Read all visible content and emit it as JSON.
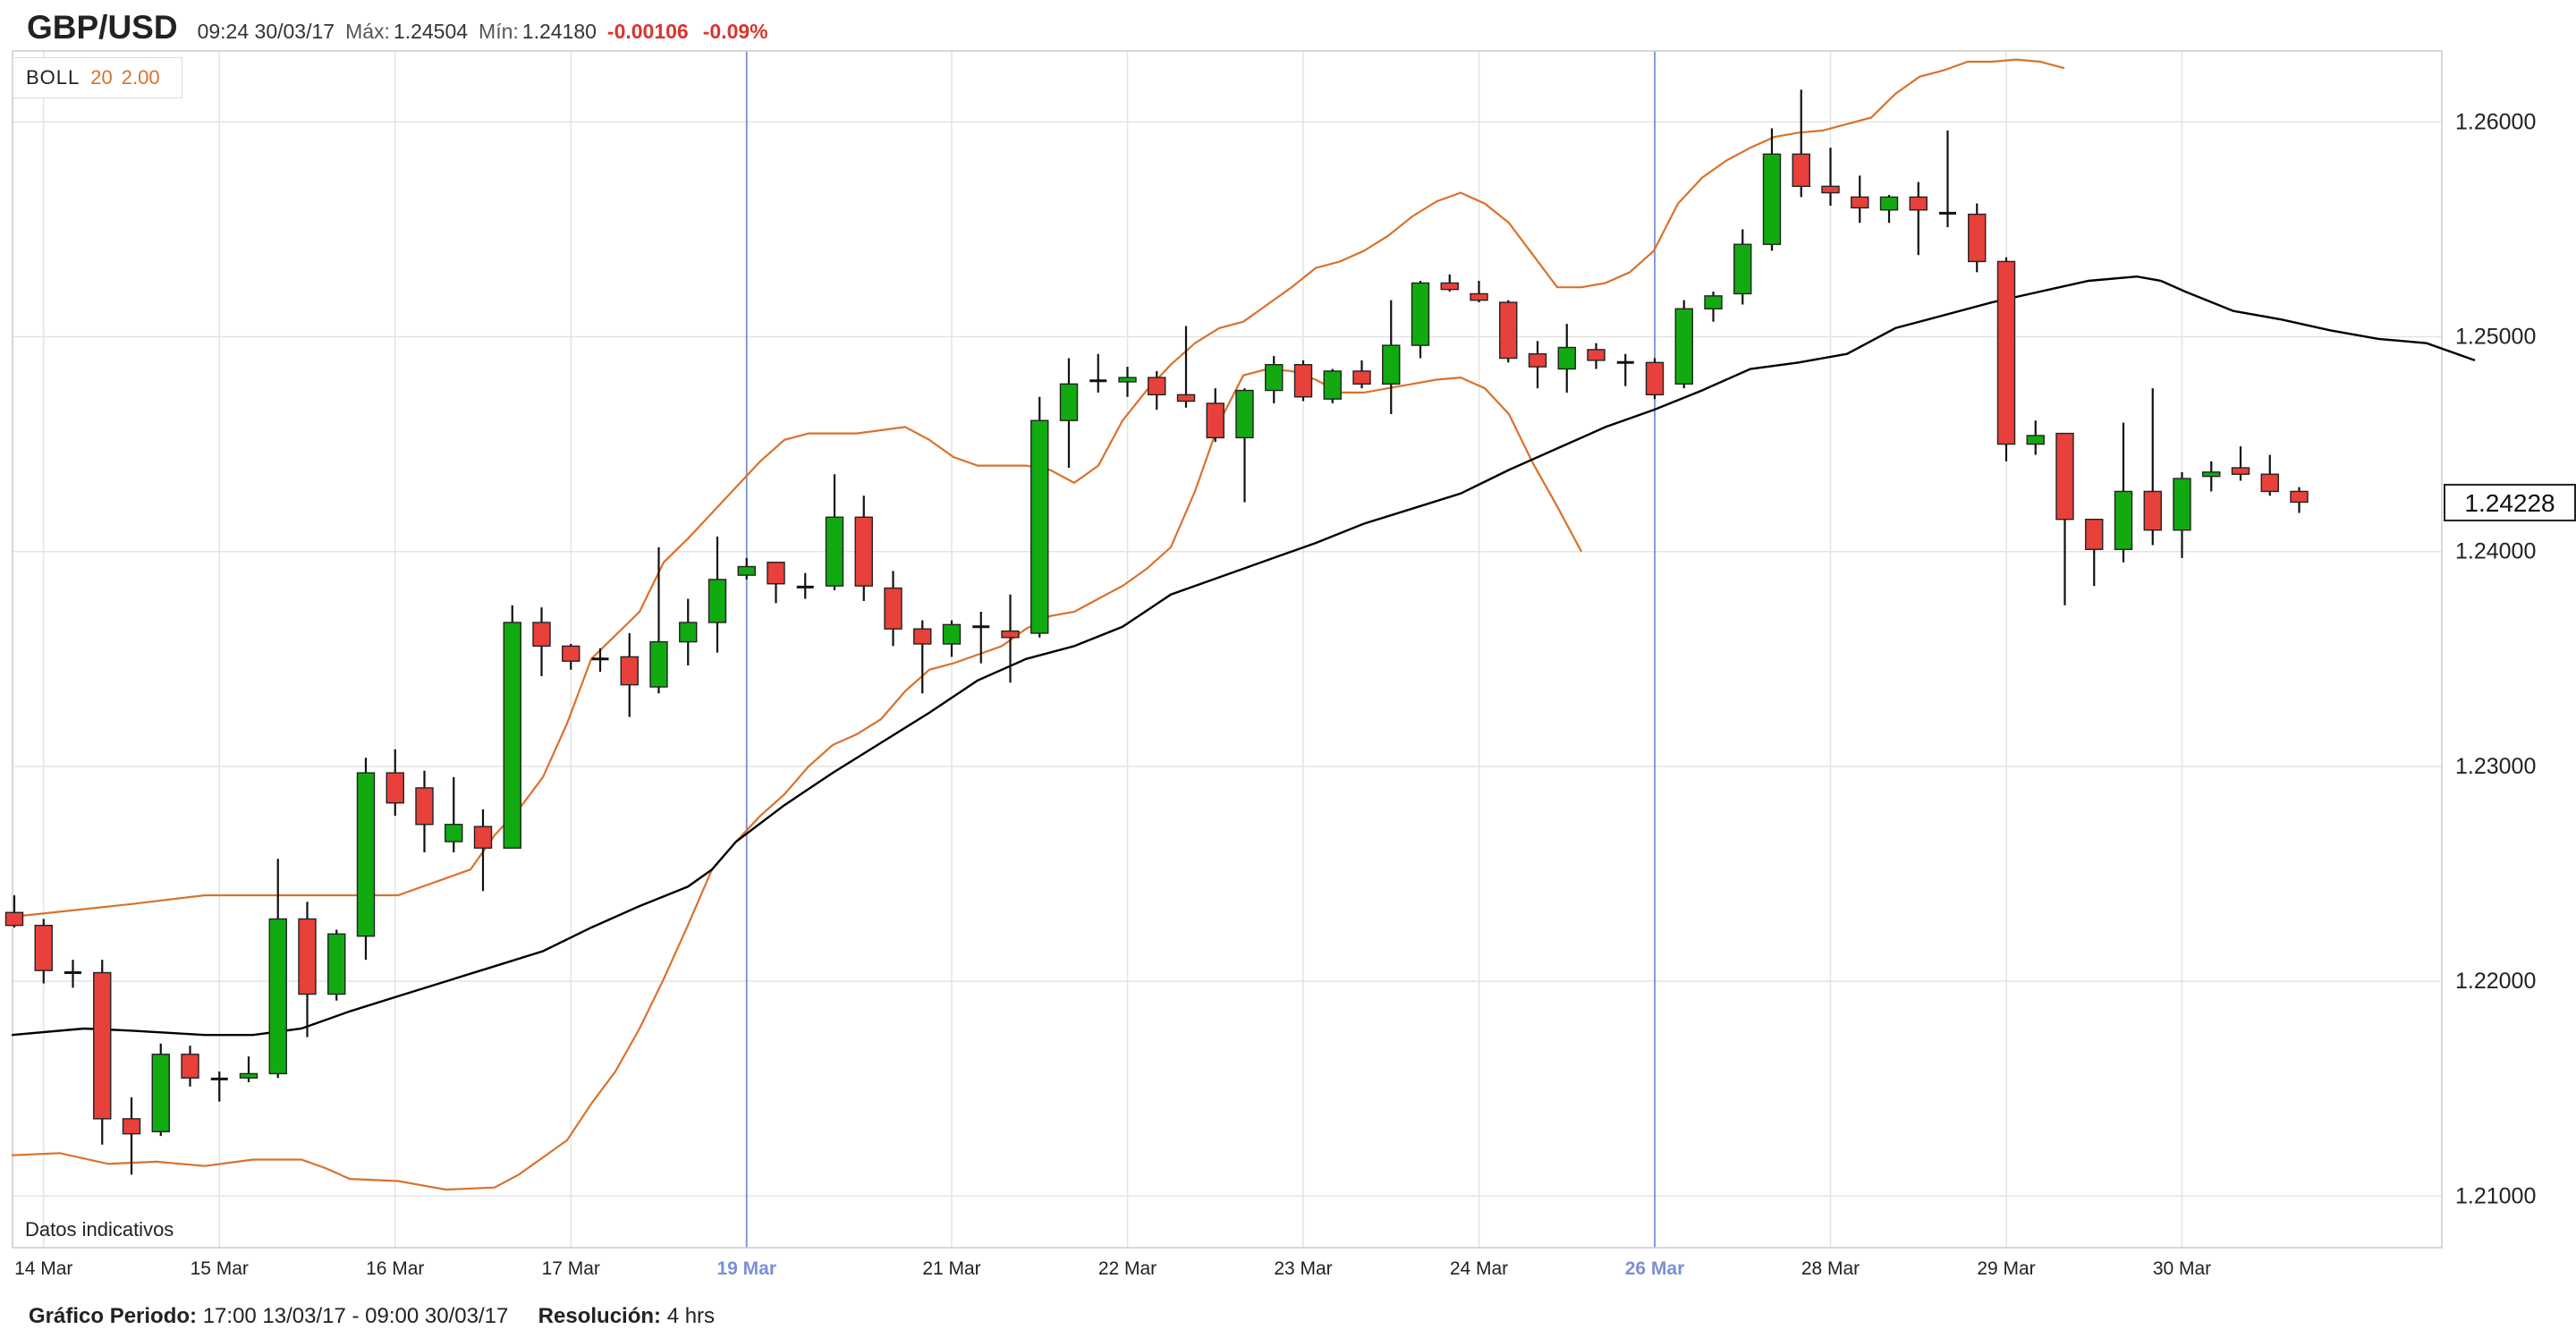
{
  "header": {
    "symbol": "GBP/USD",
    "datetime": "09:24 30/03/17",
    "max_label": "Máx:",
    "max_value": "1.24504",
    "min_label": "Mín:",
    "min_value": "1.24180",
    "change": "-0.00106",
    "change_pct": "-0.09%"
  },
  "indicator": {
    "name": "BOLL",
    "period": "20",
    "stddev": "2.00"
  },
  "disclaimer": "Datos indicativos",
  "footer": {
    "period_label": "Gráfico Periodo:",
    "period_value": "17:00 13/03/17 - 09:00 30/03/17",
    "resolution_label": "Resolución:",
    "resolution_value": "4 hrs"
  },
  "colors": {
    "up": "#11aa11",
    "down": "#e8403a",
    "boll_band": "#d9722b",
    "boll_mid": "#000000",
    "highlight": "#7b8fd4",
    "grid": "#e4e4e4"
  },
  "chart_data": {
    "type": "candlestick",
    "ylim": [
      1.2076,
      1.2633
    ],
    "y_ticks": [
      "1.26000",
      "1.25000",
      "1.24000",
      "1.23000",
      "1.22000",
      "1.21000"
    ],
    "x_ticks": [
      {
        "label": "14 Mar",
        "index": 1,
        "highlight": false
      },
      {
        "label": "15 Mar",
        "index": 7,
        "highlight": false
      },
      {
        "label": "16 Mar",
        "index": 13,
        "highlight": false
      },
      {
        "label": "17 Mar",
        "index": 19,
        "highlight": false
      },
      {
        "label": "19 Mar",
        "index": 25,
        "highlight": true
      },
      {
        "label": "21 Mar",
        "index": 32,
        "highlight": false
      },
      {
        "label": "22 Mar",
        "index": 38,
        "highlight": false
      },
      {
        "label": "23 Mar",
        "index": 44,
        "highlight": false
      },
      {
        "label": "24 Mar",
        "index": 50,
        "highlight": false
      },
      {
        "label": "26 Mar",
        "index": 56,
        "highlight": true
      },
      {
        "label": "28 Mar",
        "index": 62,
        "highlight": false
      },
      {
        "label": "29 Mar",
        "index": 68,
        "highlight": false
      },
      {
        "label": "30 Mar",
        "index": 74,
        "highlight": false
      }
    ],
    "last_price": "1.24228",
    "candles": [
      [
        1.2232,
        1.224,
        1.2225,
        1.2226
      ],
      [
        1.2226,
        1.2229,
        1.2199,
        1.2205
      ],
      [
        1.2204,
        1.221,
        1.2197,
        1.2204
      ],
      [
        1.2204,
        1.221,
        1.2124,
        1.2136
      ],
      [
        1.2136,
        1.2146,
        1.211,
        1.2129
      ],
      [
        1.213,
        1.2171,
        1.2128,
        1.2166
      ],
      [
        1.2166,
        1.217,
        1.2151,
        1.2155
      ],
      [
        1.2154,
        1.2158,
        1.2144,
        1.2155
      ],
      [
        1.2155,
        1.2165,
        1.2153,
        1.2157
      ],
      [
        1.2157,
        1.2257,
        1.2155,
        1.2229
      ],
      [
        1.2229,
        1.2237,
        1.2174,
        1.2194
      ],
      [
        1.2194,
        1.2224,
        1.2191,
        1.2222
      ],
      [
        1.2221,
        1.2304,
        1.221,
        1.2297
      ],
      [
        1.2297,
        1.2308,
        1.2277,
        1.2283
      ],
      [
        1.229,
        1.2298,
        1.226,
        1.2273
      ],
      [
        1.2265,
        1.2295,
        1.226,
        1.2273
      ],
      [
        1.2272,
        1.228,
        1.2242,
        1.2262
      ],
      [
        1.2262,
        1.2375,
        1.2262,
        1.2367
      ],
      [
        1.2367,
        1.2374,
        1.2342,
        1.2356
      ],
      [
        1.2356,
        1.2357,
        1.2345,
        1.2349
      ],
      [
        1.235,
        1.2355,
        1.2344,
        1.235
      ],
      [
        1.2351,
        1.2362,
        1.2323,
        1.2338
      ],
      [
        1.2337,
        1.2402,
        1.2334,
        1.2358
      ],
      [
        1.2358,
        1.2378,
        1.2347,
        1.2367
      ],
      [
        1.2367,
        1.2407,
        1.2353,
        1.2387
      ],
      [
        1.2389,
        1.2397,
        1.2387,
        1.2393
      ],
      [
        1.2395,
        1.2395,
        1.2376,
        1.2385
      ],
      [
        1.2384,
        1.239,
        1.2378,
        1.2383
      ],
      [
        1.2384,
        1.2436,
        1.2382,
        1.2416
      ],
      [
        1.2416,
        1.2426,
        1.2377,
        1.2384
      ],
      [
        1.2383,
        1.2391,
        1.2356,
        1.2364
      ],
      [
        1.2364,
        1.2368,
        1.2334,
        1.2357
      ],
      [
        1.2357,
        1.2368,
        1.2351,
        1.2366
      ],
      [
        1.2365,
        1.2372,
        1.2348,
        1.2365
      ],
      [
        1.2363,
        1.238,
        1.2339,
        1.236
      ],
      [
        1.2362,
        1.2472,
        1.236,
        1.2461
      ],
      [
        1.2461,
        1.249,
        1.2439,
        1.2478
      ],
      [
        1.2479,
        1.2492,
        1.2474,
        1.248
      ],
      [
        1.2479,
        1.2486,
        1.2472,
        1.2481
      ],
      [
        1.2481,
        1.2484,
        1.2466,
        1.2473
      ],
      [
        1.2473,
        1.2505,
        1.2467,
        1.247
      ],
      [
        1.2469,
        1.2476,
        1.2451,
        1.2453
      ],
      [
        1.2453,
        1.2476,
        1.2423,
        1.2475
      ],
      [
        1.2475,
        1.2491,
        1.2469,
        1.2487
      ],
      [
        1.2487,
        1.2489,
        1.247,
        1.2472
      ],
      [
        1.2471,
        1.2485,
        1.2469,
        1.2484
      ],
      [
        1.2484,
        1.2489,
        1.2476,
        1.2478
      ],
      [
        1.2478,
        1.2517,
        1.2464,
        1.2496
      ],
      [
        1.2496,
        1.2526,
        1.249,
        1.2525
      ],
      [
        1.2525,
        1.2529,
        1.2521,
        1.2522
      ],
      [
        1.252,
        1.2526,
        1.2516,
        1.2517
      ],
      [
        1.2516,
        1.2517,
        1.2488,
        1.249
      ],
      [
        1.2492,
        1.2498,
        1.2476,
        1.2486
      ],
      [
        1.2485,
        1.2506,
        1.2474,
        1.2495
      ],
      [
        1.2494,
        1.2497,
        1.2485,
        1.2489
      ],
      [
        1.2488,
        1.2492,
        1.2477,
        1.2488
      ],
      [
        1.2488,
        1.249,
        1.2471,
        1.2473
      ],
      [
        1.2478,
        1.2517,
        1.2476,
        1.2513
      ],
      [
        1.2513,
        1.2521,
        1.2507,
        1.2519
      ],
      [
        1.252,
        1.255,
        1.2515,
        1.2543
      ],
      [
        1.2543,
        1.2597,
        1.254,
        1.2585
      ],
      [
        1.2585,
        1.2615,
        1.2565,
        1.257
      ],
      [
        1.257,
        1.2588,
        1.2561,
        1.2567
      ],
      [
        1.2565,
        1.2575,
        1.2553,
        1.256
      ],
      [
        1.2559,
        1.2566,
        1.2553,
        1.2565
      ],
      [
        1.2565,
        1.2572,
        1.2538,
        1.2559
      ],
      [
        1.2558,
        1.2596,
        1.2551,
        1.2557
      ],
      [
        1.2557,
        1.2562,
        1.253,
        1.2535
      ],
      [
        1.2535,
        1.2537,
        1.2442,
        1.245
      ],
      [
        1.245,
        1.2461,
        1.2445,
        1.2454
      ],
      [
        1.2455,
        1.2455,
        1.2375,
        1.2415
      ],
      [
        1.2415,
        1.2415,
        1.2384,
        1.2401
      ],
      [
        1.2401,
        1.246,
        1.2395,
        1.2428
      ],
      [
        1.2428,
        1.2476,
        1.2403,
        1.241
      ],
      [
        1.241,
        1.2437,
        1.2397,
        1.2434
      ],
      [
        1.2435,
        1.2442,
        1.2428,
        1.2437
      ],
      [
        1.2439,
        1.2449,
        1.2433,
        1.2436
      ],
      [
        1.2436,
        1.2445,
        1.2426,
        1.2428
      ],
      [
        1.2428,
        1.243,
        1.2418,
        1.2423
      ]
    ],
    "bollinger": {
      "upper": [
        [
          0,
          1.223
        ],
        [
          5,
          1.2236
        ],
        [
          8,
          1.224
        ],
        [
          14,
          1.224
        ],
        [
          16,
          1.224
        ],
        [
          18,
          1.2248
        ],
        [
          19,
          1.2252
        ],
        [
          20,
          1.2268
        ],
        [
          21,
          1.228
        ],
        [
          22,
          1.2295
        ],
        [
          23,
          1.232
        ],
        [
          24,
          1.235
        ],
        [
          26,
          1.2372
        ],
        [
          27,
          1.2395
        ],
        [
          28,
          1.2406
        ],
        [
          29,
          1.2418
        ],
        [
          30,
          1.243
        ],
        [
          31,
          1.2442
        ],
        [
          32,
          1.2452
        ],
        [
          33,
          1.2455
        ],
        [
          35,
          1.2455
        ],
        [
          37,
          1.2458
        ],
        [
          38,
          1.2452
        ],
        [
          39,
          1.2444
        ],
        [
          40,
          1.244
        ],
        [
          41,
          1.244
        ],
        [
          42,
          1.244
        ],
        [
          43,
          1.2438
        ],
        [
          44,
          1.2432
        ],
        [
          45,
          1.244
        ],
        [
          46,
          1.2461
        ],
        [
          47,
          1.2475
        ],
        [
          48,
          1.2487
        ],
        [
          49,
          1.2497
        ],
        [
          50,
          1.2504
        ],
        [
          51,
          1.2507
        ],
        [
          52,
          1.2515
        ],
        [
          53,
          1.2523
        ],
        [
          54,
          1.2532
        ],
        [
          55,
          1.2535
        ],
        [
          56,
          1.254
        ],
        [
          57,
          1.2547
        ],
        [
          58,
          1.2556
        ],
        [
          59,
          1.2563
        ],
        [
          60,
          1.2567
        ],
        [
          61,
          1.2562
        ],
        [
          62,
          1.2553
        ],
        [
          63,
          1.2538
        ],
        [
          64,
          1.2523
        ],
        [
          65,
          1.2523
        ],
        [
          66,
          1.2525
        ],
        [
          67,
          1.253
        ],
        [
          68,
          1.254
        ],
        [
          69,
          1.2562
        ],
        [
          70,
          1.2574
        ],
        [
          71,
          1.2582
        ],
        [
          72,
          1.2588
        ],
        [
          73,
          1.2593
        ],
        [
          74,
          1.2595
        ],
        [
          75,
          1.2596
        ],
        [
          76,
          1.2599
        ],
        [
          77,
          1.2602
        ],
        [
          78,
          1.2613
        ],
        [
          79,
          1.2621
        ],
        [
          80,
          1.2624
        ],
        [
          81,
          1.2628
        ],
        [
          82,
          1.2628
        ],
        [
          83,
          1.2629
        ],
        [
          84,
          1.2628
        ],
        [
          85,
          1.2625
        ]
      ],
      "middle": [
        [
          0,
          1.2175
        ],
        [
          3,
          1.2178
        ],
        [
          5,
          1.2177
        ],
        [
          8,
          1.2175
        ],
        [
          10,
          1.2175
        ],
        [
          12,
          1.2178
        ],
        [
          14,
          1.2186
        ],
        [
          16,
          1.2193
        ],
        [
          18,
          1.22
        ],
        [
          20,
          1.2207
        ],
        [
          22,
          1.2214
        ],
        [
          24,
          1.2225
        ],
        [
          26,
          1.2235
        ],
        [
          28,
          1.2244
        ],
        [
          29,
          1.2252
        ],
        [
          30,
          1.2265
        ],
        [
          32,
          1.2282
        ],
        [
          34,
          1.2297
        ],
        [
          36,
          1.2311
        ],
        [
          38,
          1.2325
        ],
        [
          40,
          1.234
        ],
        [
          42,
          1.235
        ],
        [
          44,
          1.2356
        ],
        [
          46,
          1.2365
        ],
        [
          48,
          1.238
        ],
        [
          50,
          1.2388
        ],
        [
          52,
          1.2396
        ],
        [
          54,
          1.2404
        ],
        [
          56,
          1.2413
        ],
        [
          58,
          1.242
        ],
        [
          60,
          1.2427
        ],
        [
          62,
          1.2438
        ],
        [
          64,
          1.2448
        ],
        [
          66,
          1.2458
        ],
        [
          68,
          1.2466
        ],
        [
          70,
          1.2475
        ],
        [
          72,
          1.2485
        ],
        [
          74,
          1.2488
        ],
        [
          76,
          1.2492
        ],
        [
          78,
          1.2504
        ],
        [
          80,
          1.251
        ],
        [
          82,
          1.2516
        ],
        [
          84,
          1.2521
        ],
        [
          86,
          1.2526
        ],
        [
          88,
          1.2528
        ],
        [
          89,
          1.2526
        ],
        [
          90,
          1.2521
        ],
        [
          92,
          1.2512
        ],
        [
          94,
          1.2508
        ],
        [
          96,
          1.2503
        ],
        [
          98,
          1.2499
        ],
        [
          100,
          1.2497
        ],
        [
          102,
          1.2489
        ]
      ],
      "lower": [
        [
          0,
          1.2119
        ],
        [
          2,
          1.212
        ],
        [
          4,
          1.2115
        ],
        [
          6,
          1.2116
        ],
        [
          8,
          1.2114
        ],
        [
          10,
          1.2117
        ],
        [
          12,
          1.2117
        ],
        [
          13,
          1.2113
        ],
        [
          14,
          1.2108
        ],
        [
          16,
          1.2107
        ],
        [
          17,
          1.2105
        ],
        [
          18,
          1.2103
        ],
        [
          20,
          1.2104
        ],
        [
          21,
          1.211
        ],
        [
          22,
          1.2118
        ],
        [
          23,
          1.2126
        ],
        [
          24,
          1.2143
        ],
        [
          25,
          1.2158
        ],
        [
          26,
          1.2178
        ],
        [
          27,
          1.2201
        ],
        [
          28,
          1.2226
        ],
        [
          29,
          1.2252
        ],
        [
          30,
          1.2265
        ],
        [
          31,
          1.2277
        ],
        [
          32,
          1.2287
        ],
        [
          33,
          1.23
        ],
        [
          34,
          1.231
        ],
        [
          35,
          1.2315
        ],
        [
          36,
          1.2322
        ],
        [
          37,
          1.2335
        ],
        [
          38,
          1.2345
        ],
        [
          39,
          1.2348
        ],
        [
          40,
          1.2352
        ],
        [
          41,
          1.2356
        ],
        [
          42,
          1.2364
        ],
        [
          43,
          1.237
        ],
        [
          44,
          1.2372
        ],
        [
          45,
          1.2378
        ],
        [
          46,
          1.2384
        ],
        [
          47,
          1.2392
        ],
        [
          48,
          1.2402
        ],
        [
          49,
          1.2428
        ],
        [
          50,
          1.246
        ],
        [
          51,
          1.2482
        ],
        [
          52,
          1.2485
        ],
        [
          53,
          1.2484
        ],
        [
          54,
          1.248
        ],
        [
          55,
          1.2474
        ],
        [
          56,
          1.2474
        ],
        [
          57,
          1.2476
        ],
        [
          58,
          1.2478
        ],
        [
          59,
          1.248
        ],
        [
          60,
          1.2481
        ],
        [
          61,
          1.2476
        ],
        [
          62,
          1.2464
        ],
        [
          63,
          1.2441
        ],
        [
          64,
          1.2421
        ],
        [
          65,
          1.24
        ]
      ]
    }
  }
}
